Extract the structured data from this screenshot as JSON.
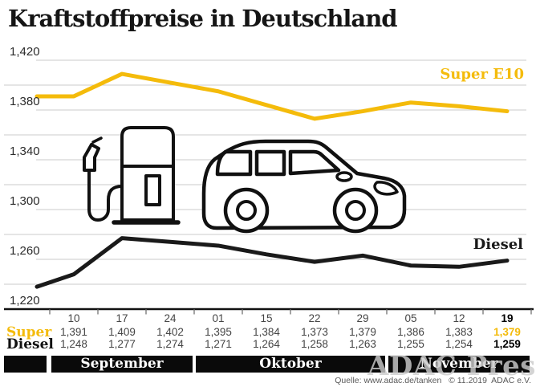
{
  "title": "Kraftstoffpreise in Deutschland",
  "watermark": "ADAC Presse",
  "source": "Quelle: www.adac.de/tanken   © 11.2019  ADAC e.V.",
  "colors": {
    "super_yellow": "#F4BB0B",
    "diesel_black": "#1A1A1A",
    "grid_gray": "#CBCBCB",
    "band_black": "#0A0A0A"
  },
  "icons": [
    {
      "name": "fuel-pump-icon"
    },
    {
      "name": "car-icon"
    }
  ],
  "chart_data": {
    "type": "line",
    "title": "Kraftstoffpreise in Deutschland",
    "categories": [
      "10",
      "17",
      "24",
      "01",
      "15",
      "22",
      "29",
      "05",
      "12",
      "19"
    ],
    "month_groups": [
      {
        "label": "September",
        "start_index": 0,
        "cells": 3
      },
      {
        "label": "Oktober",
        "start_index": 3,
        "cells": 4
      },
      {
        "label": "November",
        "start_index": 7,
        "cells": 3
      }
    ],
    "ylim": [
      1220,
      1420
    ],
    "grid_step": 20,
    "grid": true,
    "legend_position": "inline-right",
    "ytick_labels": [
      {
        "label": "1,420",
        "value": 1420
      },
      {
        "label": "1,380",
        "value": 1380
      },
      {
        "label": "1,340",
        "value": 1340
      },
      {
        "label": "1,300",
        "value": 1300
      },
      {
        "label": "1,260",
        "value": 1260
      },
      {
        "label": "1,220",
        "value": 1220
      }
    ],
    "series": [
      {
        "name": "Super E10",
        "color": "#F4BB0B",
        "values": [
          1391,
          1409,
          1402,
          1395,
          1384,
          1373,
          1379,
          1386,
          1383,
          1379
        ],
        "lead_in_value": 1391
      },
      {
        "name": "Diesel",
        "color": "#1A1A1A",
        "values": [
          1248,
          1277,
          1274,
          1271,
          1264,
          1258,
          1263,
          1255,
          1254,
          1259
        ],
        "lead_in_value": 1238
      }
    ]
  },
  "table": {
    "date_row": [
      "10",
      "17",
      "24",
      "01",
      "15",
      "22",
      "29",
      "05",
      "12",
      "19"
    ],
    "rows": [
      {
        "label": "Super",
        "color": "#F4BB0B",
        "values": [
          "1,391",
          "1,409",
          "1,402",
          "1,395",
          "1,384",
          "1,373",
          "1,379",
          "1,386",
          "1,383",
          "1,379"
        ]
      },
      {
        "label": "Diesel",
        "color": "#1A1A1A",
        "values": [
          "1,248",
          "1,277",
          "1,274",
          "1,271",
          "1,264",
          "1,258",
          "1,263",
          "1,255",
          "1,254",
          "1,259"
        ]
      }
    ],
    "last_column_emphasis": true
  }
}
